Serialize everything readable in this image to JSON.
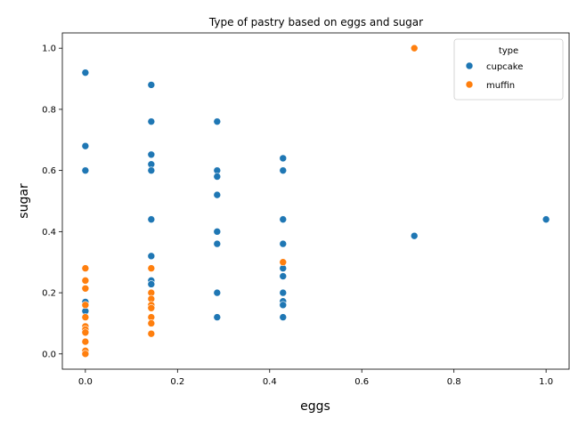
{
  "chart_data": {
    "type": "scatter",
    "title": "Type of pastry based on eggs and sugar",
    "xlabel": "eggs",
    "ylabel": "sugar",
    "xlim": [
      -0.05,
      1.05
    ],
    "ylim": [
      -0.05,
      1.05
    ],
    "xticks": [
      "0.0",
      "0.2",
      "0.4",
      "0.6",
      "0.8",
      "1.0"
    ],
    "yticks": [
      "0.0",
      "0.2",
      "0.4",
      "0.6",
      "0.8",
      "1.0"
    ],
    "grid": false,
    "legend": {
      "title": "type",
      "placement": "top-right"
    },
    "series": [
      {
        "name": "cupcake",
        "color": "#1f77b4",
        "points": [
          [
            0.0,
            0.92
          ],
          [
            0.0,
            0.68
          ],
          [
            0.0,
            0.6
          ],
          [
            0.0,
            0.17
          ],
          [
            0.0,
            0.14
          ],
          [
            0.143,
            0.88
          ],
          [
            0.143,
            0.76
          ],
          [
            0.143,
            0.652
          ],
          [
            0.143,
            0.62
          ],
          [
            0.143,
            0.6
          ],
          [
            0.143,
            0.44
          ],
          [
            0.143,
            0.32
          ],
          [
            0.143,
            0.24
          ],
          [
            0.143,
            0.228
          ],
          [
            0.286,
            0.76
          ],
          [
            0.286,
            0.6
          ],
          [
            0.286,
            0.58
          ],
          [
            0.286,
            0.52
          ],
          [
            0.286,
            0.4
          ],
          [
            0.286,
            0.36
          ],
          [
            0.286,
            0.2
          ],
          [
            0.286,
            0.12
          ],
          [
            0.429,
            0.64
          ],
          [
            0.429,
            0.6
          ],
          [
            0.429,
            0.44
          ],
          [
            0.429,
            0.36
          ],
          [
            0.429,
            0.28
          ],
          [
            0.429,
            0.254
          ],
          [
            0.429,
            0.2
          ],
          [
            0.429,
            0.172
          ],
          [
            0.429,
            0.16
          ],
          [
            0.429,
            0.12
          ],
          [
            0.714,
            0.386
          ],
          [
            1.0,
            0.44
          ]
        ]
      },
      {
        "name": "muffin",
        "color": "#ff7f0e",
        "points": [
          [
            0.0,
            0.28
          ],
          [
            0.0,
            0.24
          ],
          [
            0.0,
            0.214
          ],
          [
            0.0,
            0.16
          ],
          [
            0.0,
            0.12
          ],
          [
            0.0,
            0.09
          ],
          [
            0.0,
            0.08
          ],
          [
            0.0,
            0.07
          ],
          [
            0.0,
            0.04
          ],
          [
            0.0,
            0.01
          ],
          [
            0.0,
            0.0
          ],
          [
            0.143,
            0.28
          ],
          [
            0.143,
            0.2
          ],
          [
            0.143,
            0.18
          ],
          [
            0.143,
            0.16
          ],
          [
            0.143,
            0.15
          ],
          [
            0.143,
            0.12
          ],
          [
            0.143,
            0.1
          ],
          [
            0.143,
            0.066
          ],
          [
            0.429,
            0.3
          ],
          [
            0.714,
            1.0
          ]
        ]
      }
    ]
  }
}
